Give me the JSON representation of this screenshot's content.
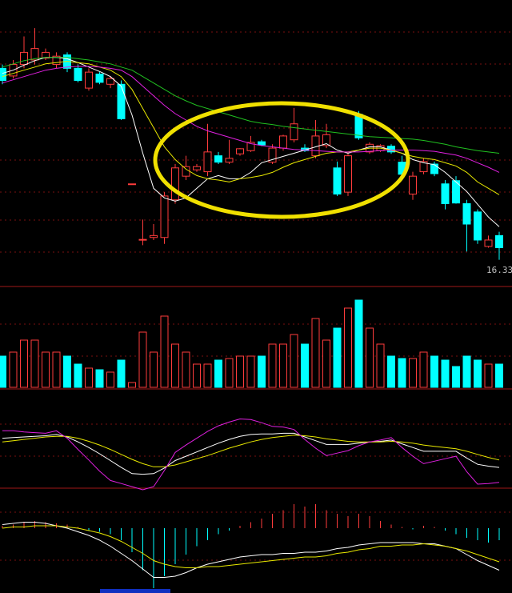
{
  "chart_data": [
    {
      "type": "candlestick",
      "up_color": "#ff3c3c",
      "down_color": "#00ffff",
      "ylim": [
        16.0,
        20.4
      ],
      "annotation": "16.33",
      "open": [
        19.33,
        19.21,
        19.39,
        19.46,
        19.49,
        19.39,
        19.54,
        19.33,
        19.02,
        19.24,
        19.08,
        19.08,
        17.52,
        16.64,
        16.68,
        16.68,
        17.27,
        17.64,
        17.74,
        17.71,
        17.96,
        17.86,
        17.99,
        18.04,
        18.18,
        17.86,
        18.08,
        18.21,
        18.08,
        17.96,
        18.12,
        17.77,
        17.39,
        18.61,
        18.02,
        18.04,
        18.11,
        17.86,
        17.36,
        17.71,
        17.83,
        17.52,
        17.57,
        17.21,
        17.08,
        16.54,
        16.71
      ],
      "high": [
        19.39,
        19.46,
        19.83,
        19.96,
        19.64,
        19.58,
        19.58,
        19.39,
        19.33,
        19.27,
        19.21,
        19.14,
        17.52,
        16.96,
        16.89,
        17.39,
        17.83,
        17.96,
        17.83,
        18.46,
        18.02,
        18.21,
        18.08,
        18.27,
        18.21,
        18.14,
        18.29,
        18.71,
        18.14,
        18.52,
        18.46,
        17.87,
        18.02,
        18.66,
        18.17,
        18.14,
        18.14,
        17.96,
        17.71,
        17.92,
        17.87,
        17.58,
        17.64,
        17.27,
        17.12,
        16.71,
        16.77
      ],
      "low": [
        19.08,
        19.17,
        19.33,
        19.39,
        19.46,
        19.33,
        19.27,
        19.11,
        18.98,
        19.08,
        19.02,
        18.52,
        17.52,
        16.56,
        16.64,
        16.58,
        17.21,
        17.58,
        17.71,
        17.64,
        17.83,
        17.83,
        17.96,
        18.02,
        18.11,
        17.83,
        18.04,
        18.17,
        18.02,
        17.92,
        18.08,
        17.33,
        17.33,
        18.21,
        17.99,
        18.02,
        17.99,
        17.64,
        17.27,
        17.67,
        17.64,
        17.12,
        17.21,
        16.46,
        16.58,
        16.52,
        16.33
      ],
      "close": [
        19.14,
        19.39,
        19.58,
        19.64,
        19.58,
        19.52,
        19.33,
        19.14,
        19.27,
        19.11,
        19.17,
        18.54,
        17.52,
        16.65,
        16.71,
        17.33,
        17.77,
        17.79,
        17.79,
        18.02,
        17.86,
        17.92,
        18.07,
        18.17,
        18.13,
        18.08,
        18.27,
        18.46,
        18.04,
        18.27,
        18.29,
        17.36,
        17.96,
        18.24,
        18.14,
        18.12,
        18.02,
        17.67,
        17.64,
        17.87,
        17.68,
        17.21,
        17.22,
        16.89,
        16.64,
        16.64,
        16.52
      ],
      "series": [
        {
          "color": "#ffffff",
          "values": [
            19.25,
            19.3,
            19.38,
            19.45,
            19.5,
            19.5,
            19.48,
            19.42,
            19.35,
            19.28,
            19.2,
            19.05,
            18.6,
            18.0,
            17.45,
            17.3,
            17.25,
            17.3,
            17.45,
            17.6,
            17.65,
            17.6,
            17.6,
            17.7,
            17.85,
            17.9,
            17.95,
            18.0,
            18.05,
            18.1,
            18.15,
            18.05,
            18.0,
            18.05,
            18.1,
            18.1,
            18.05,
            18.0,
            17.9,
            17.85,
            17.82,
            17.7,
            17.55,
            17.4,
            17.2,
            17.0,
            16.85
          ]
        },
        {
          "color": "#e8e800",
          "values": [
            19.2,
            19.25,
            19.3,
            19.35,
            19.4,
            19.42,
            19.44,
            19.42,
            19.4,
            19.35,
            19.3,
            19.2,
            19.0,
            18.7,
            18.4,
            18.1,
            17.9,
            17.75,
            17.65,
            17.6,
            17.58,
            17.55,
            17.6,
            17.62,
            17.65,
            17.7,
            17.78,
            17.85,
            17.9,
            17.95,
            18.0,
            18.02,
            18.02,
            18.05,
            18.08,
            18.08,
            18.05,
            18.0,
            17.95,
            17.92,
            17.9,
            17.85,
            17.8,
            17.7,
            17.55,
            17.45,
            17.35
          ]
        },
        {
          "color": "#e020e0",
          "values": [
            19.1,
            19.15,
            19.2,
            19.25,
            19.3,
            19.33,
            19.35,
            19.36,
            19.36,
            19.35,
            19.33,
            19.3,
            19.2,
            19.05,
            18.9,
            18.75,
            18.62,
            18.52,
            18.42,
            18.35,
            18.3,
            18.25,
            18.2,
            18.15,
            18.12,
            18.1,
            18.08,
            18.06,
            18.05,
            18.04,
            18.03,
            18.02,
            18.02,
            18.02,
            18.03,
            18.04,
            18.05,
            18.05,
            18.05,
            18.04,
            18.03,
            18.0,
            17.97,
            17.92,
            17.85,
            17.78,
            17.7
          ]
        },
        {
          "color": "#20c020",
          "values": [
            19.35,
            19.4,
            19.45,
            19.48,
            19.5,
            19.5,
            19.5,
            19.48,
            19.46,
            19.43,
            19.4,
            19.35,
            19.3,
            19.2,
            19.1,
            19.0,
            18.9,
            18.82,
            18.75,
            18.7,
            18.65,
            18.6,
            18.55,
            18.5,
            18.47,
            18.45,
            18.42,
            18.4,
            18.38,
            18.36,
            18.34,
            18.32,
            18.3,
            18.28,
            18.26,
            18.25,
            18.24,
            18.23,
            18.22,
            18.2,
            18.17,
            18.14,
            18.1,
            18.07,
            18.04,
            18.02,
            18.0
          ]
        }
      ]
    },
    {
      "type": "bar",
      "ylim": [
        0,
        124
      ],
      "values": [
        39,
        44,
        59,
        59,
        44,
        44,
        39,
        29,
        24,
        22,
        19,
        34,
        6,
        69,
        44,
        89,
        54,
        44,
        29,
        29,
        34,
        36,
        39,
        39,
        39,
        54,
        54,
        66,
        54,
        86,
        59,
        74,
        99,
        109,
        74,
        54,
        39,
        36,
        36,
        44,
        39,
        34,
        26,
        39,
        34,
        29,
        29
      ]
    },
    {
      "type": "line",
      "ylim": [
        -15,
        110
      ],
      "series": [
        {
          "color": "#ffffff",
          "values": [
            68,
            69,
            70,
            71,
            72,
            74,
            70,
            62,
            53,
            43,
            32,
            21,
            11,
            10,
            11,
            20,
            32,
            39,
            46,
            53,
            60,
            66,
            71,
            74,
            75,
            75,
            76,
            76,
            70,
            64,
            58,
            58,
            58,
            60,
            62,
            63,
            65,
            59,
            53,
            47,
            47,
            47,
            47,
            36,
            26,
            23,
            21
          ]
        },
        {
          "color": "#e8e800",
          "values": [
            62,
            64,
            66,
            68,
            70,
            71,
            71,
            68,
            63,
            57,
            50,
            42,
            34,
            27,
            22,
            22,
            25,
            30,
            35,
            40,
            46,
            52,
            57,
            62,
            66,
            69,
            71,
            73,
            72,
            70,
            67,
            65,
            63,
            62,
            62,
            62,
            63,
            62,
            60,
            57,
            55,
            53,
            51,
            47,
            42,
            37,
            33
          ]
        },
        {
          "color": "#e020e0",
          "values": [
            80,
            80,
            78,
            77,
            76,
            80,
            68,
            50,
            33,
            15,
            0,
            -5,
            -10,
            -15,
            -10,
            16,
            45,
            57,
            68,
            79,
            88,
            94,
            99,
            98,
            93,
            87,
            86,
            82,
            66,
            52,
            40,
            44,
            48,
            56,
            62,
            65,
            69,
            53,
            39,
            27,
            31,
            35,
            39,
            14,
            -6,
            -5,
            -3
          ]
        }
      ]
    },
    {
      "type": "macd",
      "ylim": [
        -0.5,
        0.3
      ],
      "up_color": "#ff3c3c",
      "down_color": "#00ffff",
      "histogram": [
        0.02,
        0.03,
        0.05,
        0.06,
        0.05,
        0.04,
        0.03,
        0.01,
        -0.02,
        -0.03,
        -0.05,
        -0.1,
        -0.2,
        -0.35,
        -0.5,
        -0.4,
        -0.3,
        -0.22,
        -0.15,
        -0.1,
        -0.05,
        -0.02,
        0.02,
        0.05,
        0.08,
        0.12,
        0.15,
        0.2,
        0.18,
        0.2,
        0.15,
        0.12,
        0.1,
        0.12,
        0.1,
        0.06,
        0.03,
        0.01,
        -0.01,
        0.02,
        0.01,
        -0.02,
        -0.05,
        -0.08,
        -0.1,
        -0.12,
        -0.1
      ],
      "series": [
        {
          "color": "#ffffff",
          "values": [
            0.03,
            0.04,
            0.05,
            0.05,
            0.04,
            0.02,
            0,
            -0.03,
            -0.06,
            -0.1,
            -0.15,
            -0.21,
            -0.27,
            -0.34,
            -0.41,
            -0.41,
            -0.4,
            -0.37,
            -0.33,
            -0.3,
            -0.28,
            -0.26,
            -0.24,
            -0.23,
            -0.22,
            -0.22,
            -0.21,
            -0.21,
            -0.2,
            -0.2,
            -0.19,
            -0.17,
            -0.16,
            -0.14,
            -0.13,
            -0.12,
            -0.12,
            -0.12,
            -0.12,
            -0.13,
            -0.13,
            -0.15,
            -0.17,
            -0.22,
            -0.27,
            -0.31,
            -0.35
          ]
        },
        {
          "color": "#e8e800",
          "values": [
            0,
            0.01,
            0.01,
            0.02,
            0.02,
            0.02,
            0.01,
            0,
            -0.02,
            -0.04,
            -0.07,
            -0.11,
            -0.16,
            -0.21,
            -0.27,
            -0.3,
            -0.32,
            -0.33,
            -0.33,
            -0.32,
            -0.32,
            -0.31,
            -0.3,
            -0.29,
            -0.28,
            -0.27,
            -0.26,
            -0.25,
            -0.24,
            -0.24,
            -0.23,
            -0.21,
            -0.2,
            -0.18,
            -0.17,
            -0.15,
            -0.15,
            -0.14,
            -0.14,
            -0.13,
            -0.14,
            -0.15,
            -0.17,
            -0.19,
            -0.22,
            -0.25,
            -0.28
          ]
        }
      ]
    }
  ]
}
